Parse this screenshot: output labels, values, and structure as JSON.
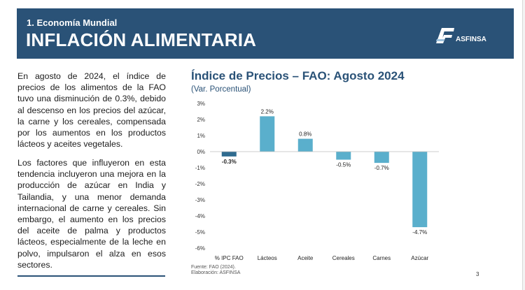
{
  "header": {
    "section": "1. Economía Mundial",
    "title": "INFLACIÓN ALIMENTARIA",
    "logo_mark": "AF",
    "logo_text": "ASFINSA"
  },
  "body_text": {
    "paragraph_1": "En agosto de 2024, el índice de precios de los alimentos de la FAO tuvo una disminución de 0.3%, debido al descenso en los precios del azúcar, la carne y los cereales, compensada por los aumentos en los productos lácteos y aceites vegetales.",
    "paragraph_2": "Los factores que influyeron en esta tendencia incluyeron una mejora en la producción de azúcar en India y Tailandia, y una menor demanda internacional de carne y cereales. Sin embargo, el aumento en los precios del aceite de palma y productos lácteos, especialmente de la leche en polvo, impulsaron el alza en esos sectores."
  },
  "footer": {
    "source": "Fuente: FAO (2024).",
    "elaboration": "Elaboración: ASFINSA",
    "page_number": "3"
  },
  "colors": {
    "navy": "#2a5277",
    "bar_primary": "#2f6b8f",
    "bar_secondary": "#5aafcc"
  },
  "chart_data": {
    "type": "bar",
    "title": "Índice de Precios – FAO: Agosto 2024",
    "subtitle": "(Var. Porcentual)",
    "categories": [
      "% IPC FAO",
      "Lácteos",
      "Aceite",
      "Cereales",
      "Carnes",
      "Azúcar"
    ],
    "values": [
      -0.3,
      2.2,
      0.8,
      -0.5,
      -0.7,
      -4.7
    ],
    "data_labels": [
      "-0.3%",
      "2.2%",
      "0.8%",
      "-0.5%",
      "-0.7%",
      "-4.7%"
    ],
    "ylim": [
      -6,
      3
    ],
    "yticks": [
      3,
      2,
      1,
      0,
      -1,
      -2,
      -3,
      -4,
      -5,
      -6
    ],
    "ytick_labels": [
      "3%",
      "2%",
      "1%",
      "0%",
      "-1%",
      "-2%",
      "-3%",
      "-4%",
      "-5%",
      "-6%"
    ],
    "xlabel": "",
    "ylabel": "",
    "grid": false,
    "legend": "none"
  }
}
